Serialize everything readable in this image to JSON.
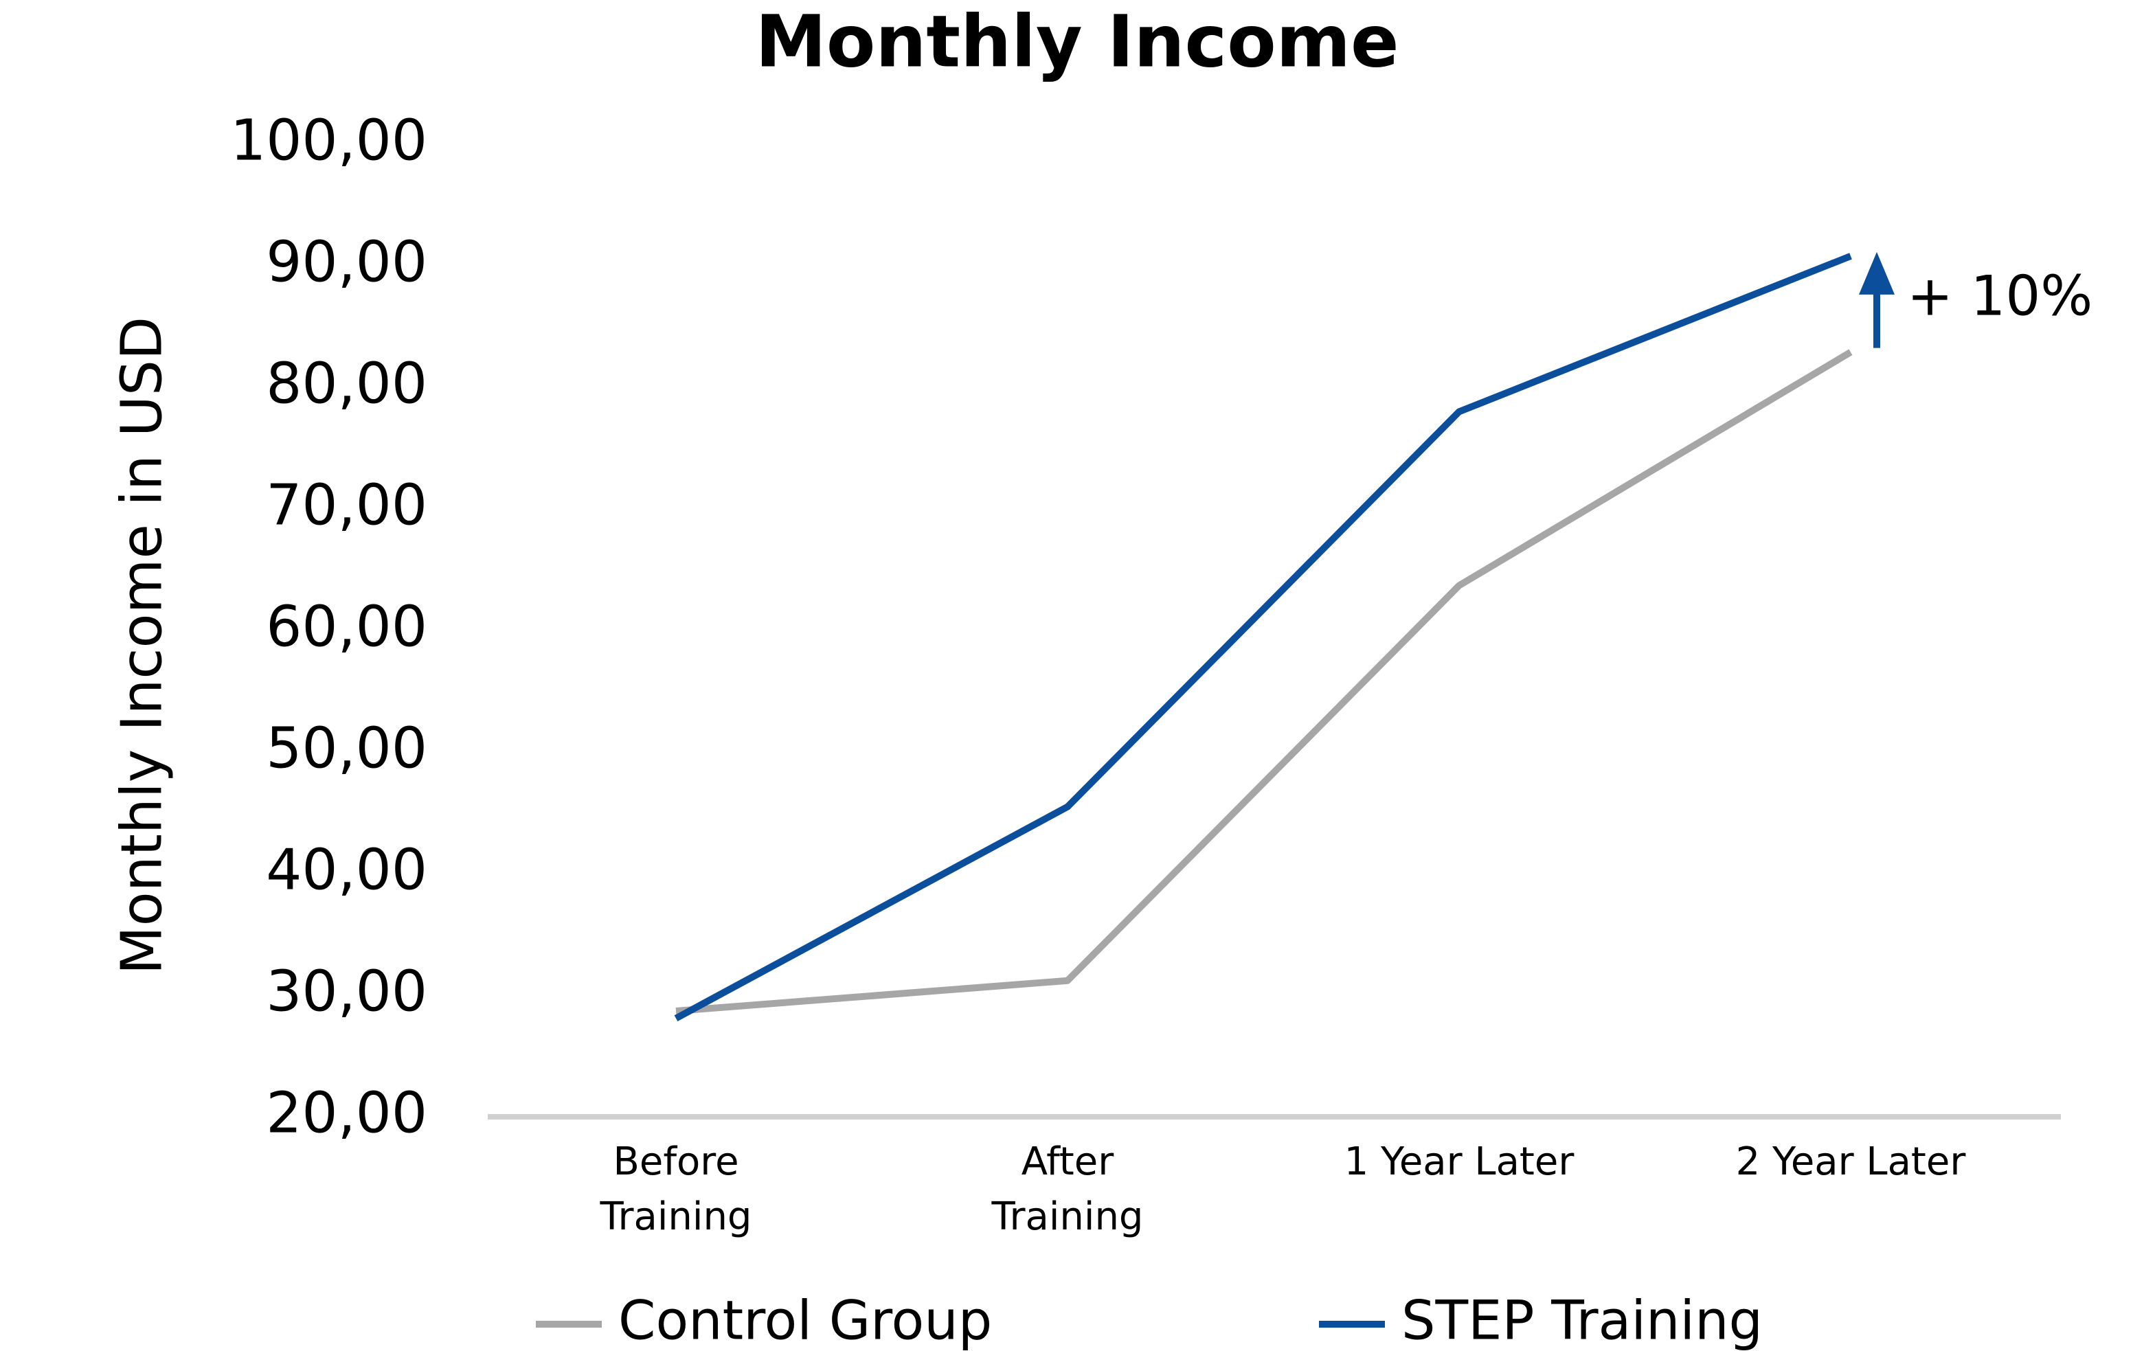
{
  "chart_data": {
    "type": "line",
    "title": "Monthly Income",
    "y_label": "Monthly Income in USD",
    "categories": [
      "Before Training",
      "After Training",
      "1 Year Later",
      "2 Year Later"
    ],
    "series": [
      {
        "name": "Control Group",
        "color": "#a6a6a6",
        "values": [
          28.7,
          31.2,
          63.7,
          82.9
        ]
      },
      {
        "name": "STEP Training",
        "color": "#0b4f9c",
        "values": [
          28.1,
          45.5,
          78.0,
          90.8
        ]
      }
    ],
    "ylim": [
      20,
      100
    ],
    "yticks": [
      {
        "value": 20,
        "label": "20,00"
      },
      {
        "value": 30,
        "label": "30,00"
      },
      {
        "value": 40,
        "label": "40,00"
      },
      {
        "value": 50,
        "label": "50,00"
      },
      {
        "value": 60,
        "label": "60,00"
      },
      {
        "value": 70,
        "label": "70,00"
      },
      {
        "value": 80,
        "label": "80,00"
      },
      {
        "value": 90,
        "label": "90,00"
      },
      {
        "value": 100,
        "label": "100,00"
      }
    ],
    "grid": false,
    "legend": "bottom",
    "annotations": [
      {
        "text": "+ 10%"
      }
    ]
  }
}
